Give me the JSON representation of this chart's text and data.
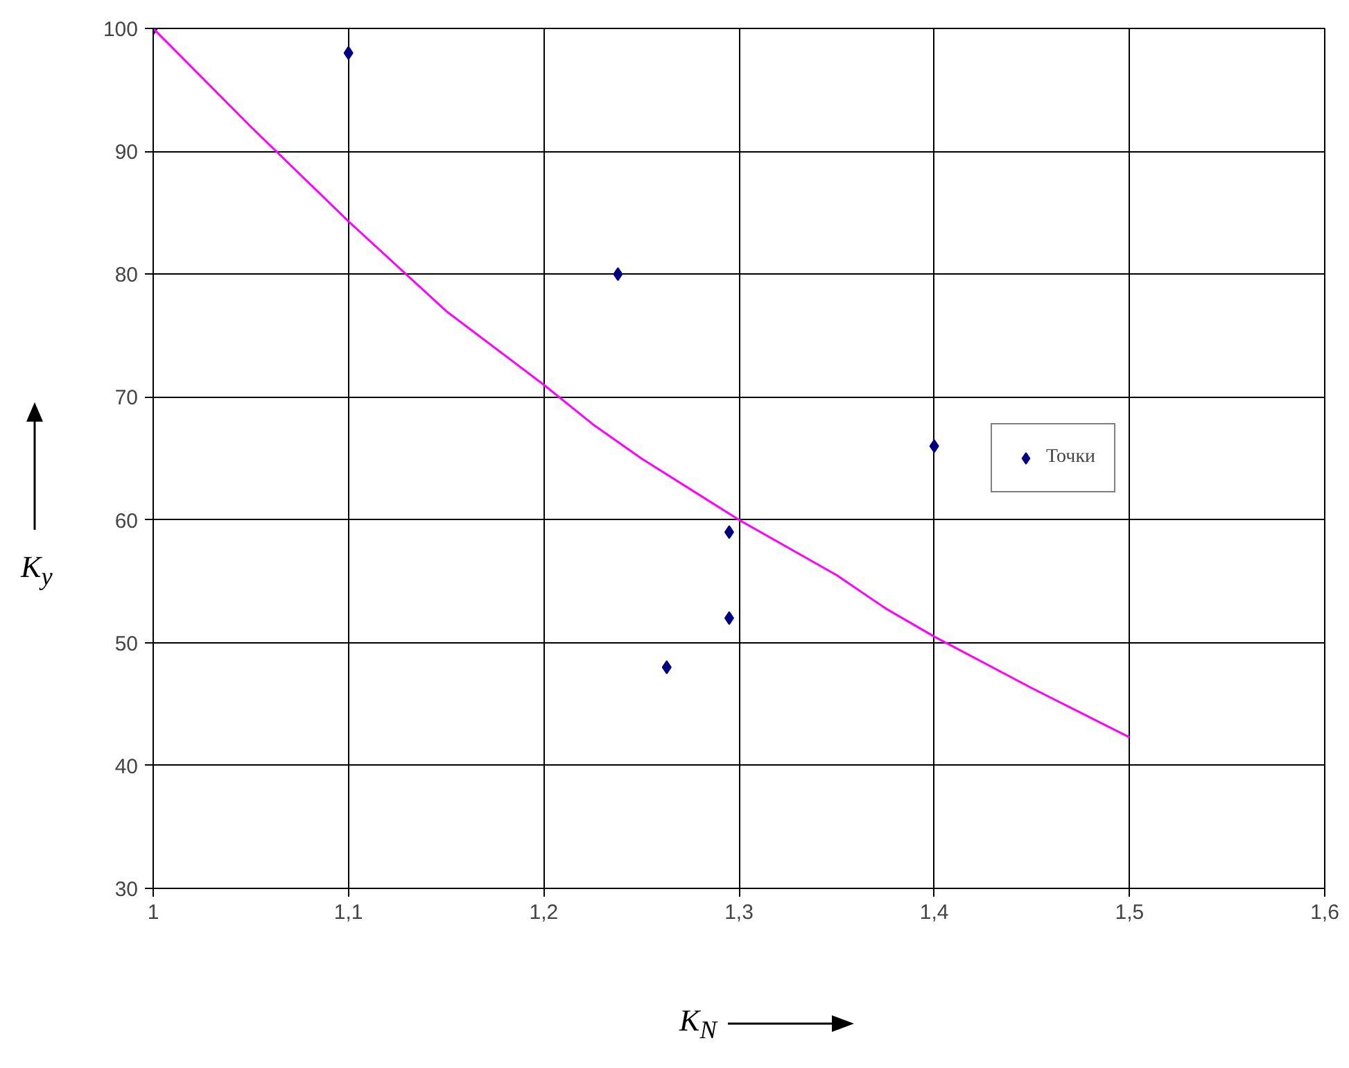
{
  "chart_data": {
    "type": "scatter",
    "xlabel": "K$_{N}$",
    "ylabel": "K$_{y}$",
    "x": [
      1.0,
      1.1,
      1.238,
      1.295,
      1.295,
      1.263,
      1.4
    ],
    "series": [
      {
        "name": "Точки",
        "color": "#000080",
        "marker": "diamond",
        "values": [
          100,
          98,
          80,
          59,
          52,
          48,
          66
        ]
      },
      {
        "type": "line",
        "color": "#ff00ff",
        "x": [
          1.0,
          1.05,
          1.1,
          1.15,
          1.2,
          1.225,
          1.25,
          1.3,
          1.35,
          1.375,
          1.4,
          1.45,
          1.5
        ],
        "values": [
          100,
          92,
          84.3,
          77,
          71,
          67.8,
          65,
          60,
          55.5,
          52.8,
          50.5,
          46.3,
          42.3
        ]
      }
    ],
    "xlim": [
      1,
      1.6
    ],
    "ylim": [
      30,
      100
    ],
    "xticks": [
      1,
      {
        "value": 1.1,
        "label": "1,1"
      },
      {
        "value": 1.2,
        "label": "1,2"
      },
      {
        "value": 1.3,
        "label": "1,3"
      },
      {
        "value": 1.4,
        "label": "1,4"
      },
      {
        "value": 1.5,
        "label": "1,5"
      },
      {
        "value": 1.6,
        "label": "1,6"
      }
    ],
    "yticks": [
      30,
      40,
      50,
      60,
      70,
      80,
      90,
      100
    ],
    "grid": true,
    "legend": "right",
    "line_style": "solid"
  }
}
